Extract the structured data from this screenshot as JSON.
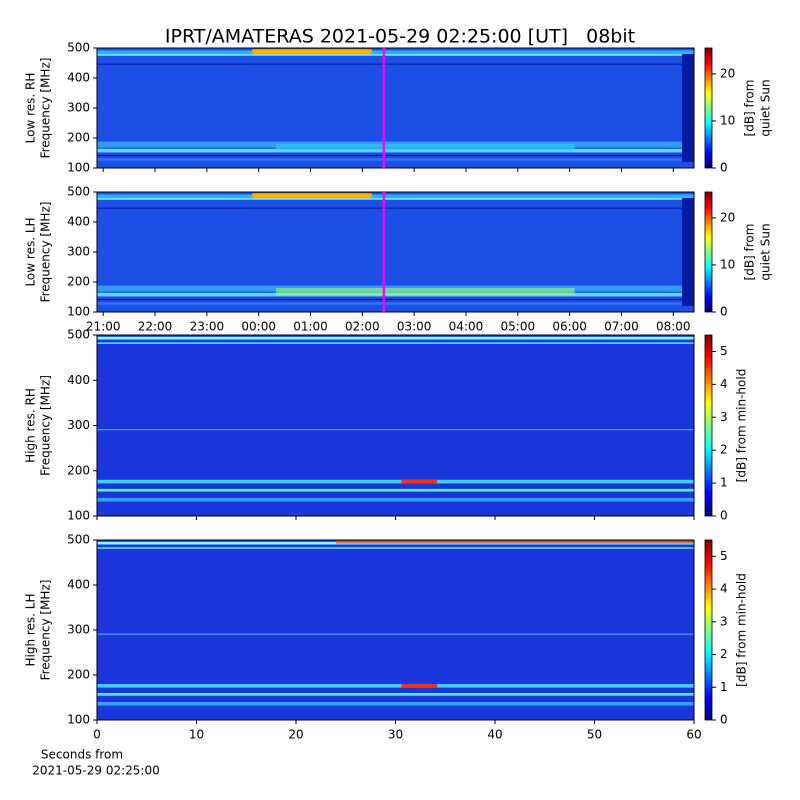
{
  "title": "IPRT/AMATERAS 2021-05-29 02:25:00 [UT]   08bit",
  "chart_data": [
    {
      "type": "heatmap",
      "colormap": "jet",
      "ylabel": [
        "Low res. RH",
        "Frequency [MHz]"
      ],
      "ylim": [
        100,
        500
      ],
      "yticks": [
        100,
        200,
        300,
        400,
        500
      ],
      "xlim": [
        20.88,
        32.4
      ],
      "xticks": [
        21,
        22,
        23,
        24,
        25,
        26,
        27,
        28,
        29,
        30,
        31,
        32
      ],
      "xtick_labels_shown": false,
      "marker_x": 26.4167,
      "marker_color": "#ff00ff",
      "colorbar": {
        "label": [
          "[dB] from",
          "quiet Sun"
        ],
        "lim": [
          0,
          25.5
        ],
        "ticks": [
          0,
          10,
          20
        ]
      }
    },
    {
      "type": "heatmap",
      "colormap": "jet",
      "ylabel": [
        "Low res. LH",
        "Frequency [MHz]"
      ],
      "ylim": [
        100,
        500
      ],
      "yticks": [
        100,
        200,
        300,
        400,
        500
      ],
      "xlim": [
        20.88,
        32.4
      ],
      "xticks": [
        {
          "value": 21,
          "label": "21:00"
        },
        {
          "value": 22,
          "label": "22:00"
        },
        {
          "value": 23,
          "label": "23:00"
        },
        {
          "value": 24,
          "label": "00:00"
        },
        {
          "value": 25,
          "label": "01:00"
        },
        {
          "value": 26,
          "label": "02:00"
        },
        {
          "value": 27,
          "label": "03:00"
        },
        {
          "value": 28,
          "label": "04:00"
        },
        {
          "value": 29,
          "label": "05:00"
        },
        {
          "value": 30,
          "label": "06:00"
        },
        {
          "value": 31,
          "label": "07:00"
        },
        {
          "value": 32,
          "label": "08:00"
        }
      ],
      "xtick_labels_shown": true,
      "marker_x": 26.4167,
      "marker_color": "#ff00ff",
      "colorbar": {
        "label": [
          "[dB] from",
          "quiet Sun"
        ],
        "lim": [
          0,
          25.5
        ],
        "ticks": [
          0,
          10,
          20
        ]
      }
    },
    {
      "type": "heatmap",
      "colormap": "jet",
      "ylabel": [
        "High res. RH",
        "Frequency [MHz]"
      ],
      "ylim": [
        100,
        500
      ],
      "yticks": [
        100,
        200,
        300,
        400,
        500
      ],
      "xlim": [
        0,
        60
      ],
      "xticks": [
        0,
        10,
        20,
        30,
        40,
        50,
        60
      ],
      "xtick_labels_shown": false,
      "colorbar": {
        "label": [
          "[dB] from min-hold"
        ],
        "lim": [
          0,
          5.5
        ],
        "ticks": [
          0,
          1,
          2,
          3,
          4,
          5
        ]
      }
    },
    {
      "type": "heatmap",
      "colormap": "jet",
      "ylabel": [
        "High res. LH",
        "Frequency [MHz]"
      ],
      "ylim": [
        100,
        500
      ],
      "yticks": [
        100,
        200,
        300,
        400,
        500
      ],
      "xlim": [
        0,
        60
      ],
      "xticks": [
        0,
        10,
        20,
        30,
        40,
        50,
        60
      ],
      "xtick_labels_shown": true,
      "xlabel": [
        "Seconds from",
        "2021-05-29 02:25:00"
      ],
      "colorbar": {
        "label": [
          "[dB] from min-hold"
        ],
        "lim": [
          0,
          5.5
        ],
        "ticks": [
          0,
          1,
          2,
          3,
          4,
          5
        ]
      }
    }
  ]
}
